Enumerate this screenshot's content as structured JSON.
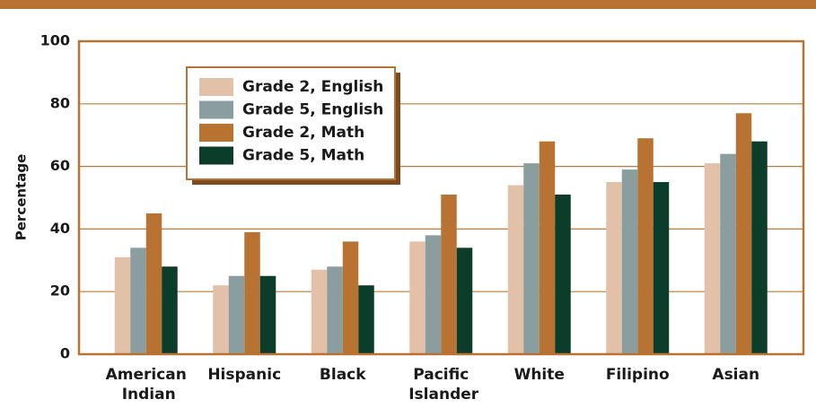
{
  "chart_data": {
    "type": "bar",
    "y_label": "Percentage",
    "categories": [
      "American Indian",
      "Hispanic",
      "Black",
      "Pacific Islander",
      "White",
      "Filipino",
      "Asian"
    ],
    "series": [
      {
        "name": "Grade 2, English",
        "color": "#e3c0a8",
        "values": [
          31,
          22,
          27,
          36,
          54,
          55,
          61
        ]
      },
      {
        "name": "Grade 5, English",
        "color": "#8a9ea0",
        "values": [
          34,
          25,
          28,
          38,
          61,
          59,
          64
        ]
      },
      {
        "name": "Grade 2, Math",
        "color": "#b87333",
        "values": [
          45,
          39,
          36,
          51,
          68,
          69,
          77
        ]
      },
      {
        "name": "Grade 5, Math",
        "color": "#0b3d2a",
        "values": [
          28,
          25,
          22,
          34,
          51,
          55,
          68
        ]
      }
    ],
    "ylim": [
      0,
      100
    ],
    "yticks": [
      0,
      20,
      40,
      60,
      80,
      100
    ],
    "grid": true
  }
}
